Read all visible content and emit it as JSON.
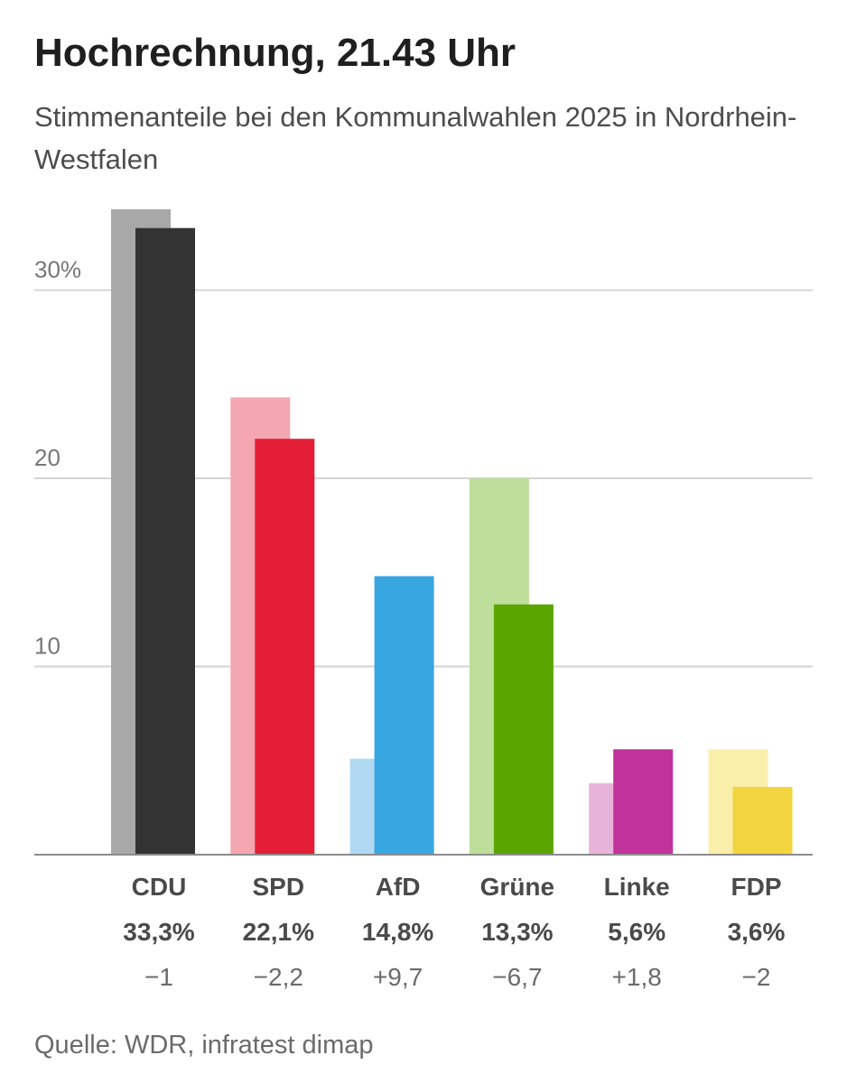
{
  "title": "Hochrechnung, 21.43 Uhr",
  "subtitle": "Stimmenanteile bei den Kommunalwahlen 2025 in Nordrhein-Westfalen",
  "source": "Quelle: WDR, infratest dimap",
  "chart_data": {
    "type": "bar",
    "title": "Hochrechnung, 21.43 Uhr",
    "subtitle": "Stimmenanteile bei den Kommunalwahlen 2025 in Nordrhein-Westfalen",
    "categories": [
      "CDU",
      "SPD",
      "AfD",
      "Grüne",
      "Linke",
      "FDP"
    ],
    "series": [
      {
        "values": [
          34.3,
          24.3,
          5.1,
          20.0,
          3.8,
          5.6
        ]
      },
      {
        "values": [
          33.3,
          22.1,
          14.8,
          13.3,
          5.6,
          3.6
        ]
      }
    ],
    "value_labels": [
      "33,3%",
      "22,1%",
      "14,8%",
      "13,3%",
      "5,6%",
      "3,6%"
    ],
    "change_labels": [
      "−1",
      "−2,2",
      "+9,7",
      "−6,7",
      "+1,8",
      "−2"
    ],
    "yticks": [
      {
        "value": 10,
        "label": "10"
      },
      {
        "value": 20,
        "label": "20"
      },
      {
        "value": 30,
        "label": "30%"
      }
    ],
    "ylim": [
      0,
      35
    ],
    "grid": true,
    "colors": {
      "current": [
        "#333333",
        "#e31e36",
        "#37a6e1",
        "#5aa500",
        "#c2329b",
        "#f2d43e"
      ],
      "previous": [
        "#a8a8a8",
        "#f4a7b1",
        "#b1daf2",
        "#bfdd9b",
        "#e8b3d9",
        "#faeeab"
      ],
      "grid": "#d4d4d4",
      "baseline": "#8c8c8c"
    }
  }
}
